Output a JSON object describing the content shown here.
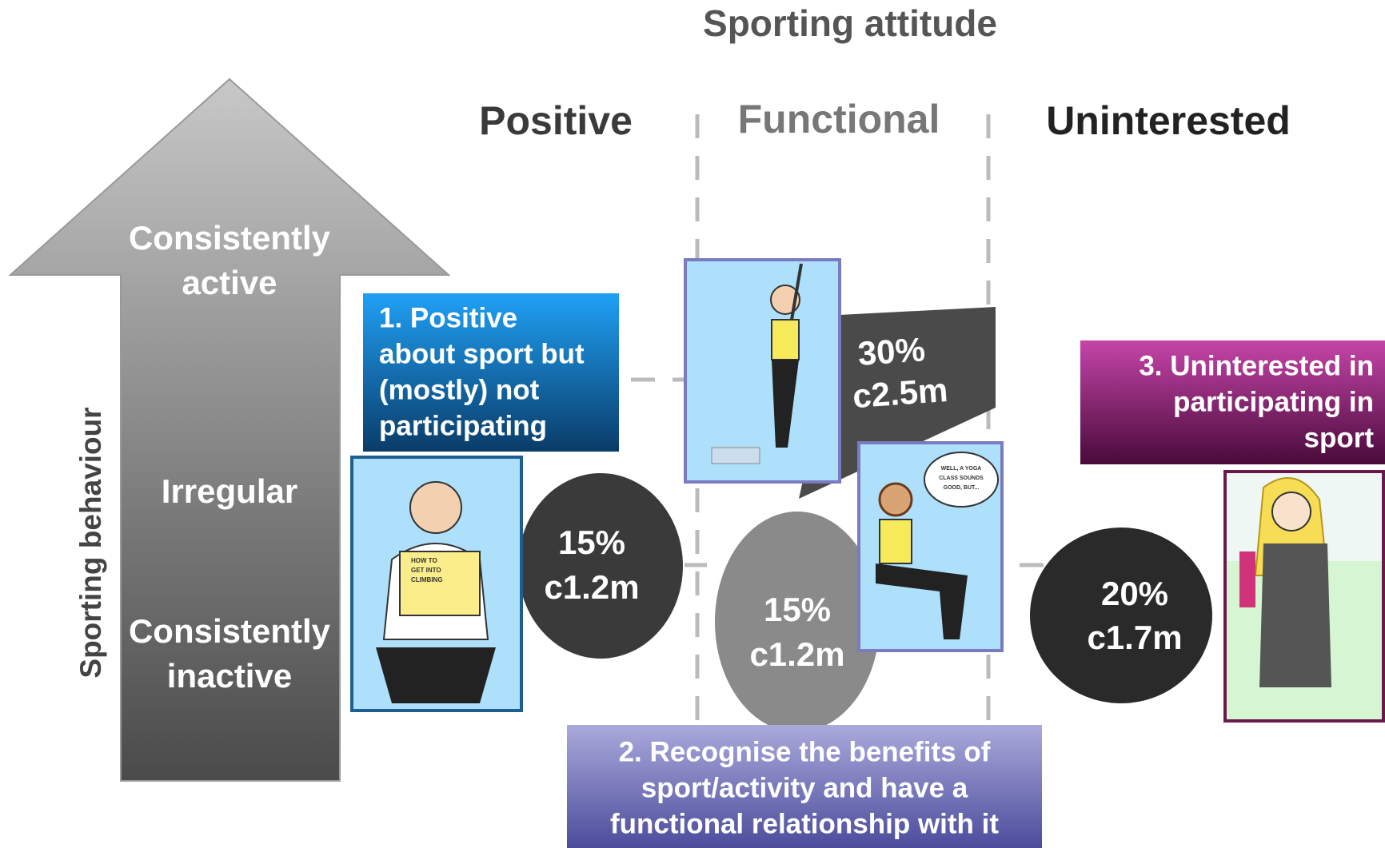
{
  "title": "Sporting attitude",
  "columns": [
    "Positive",
    "Functional",
    "Uninterested"
  ],
  "axis": {
    "label": "Sporting behaviour",
    "levels": [
      [
        "Consistently",
        "active"
      ],
      [
        "Irregular"
      ],
      [
        "Consistently",
        "inactive"
      ]
    ]
  },
  "segments": [
    {
      "label": [
        "1. Positive",
        "about sport but",
        "(mostly) not",
        "participating"
      ],
      "percent": "15%",
      "count": "c1.2m",
      "illustration_text": [
        "HOW TO",
        "GET INTO",
        "CLIMBING"
      ]
    },
    {
      "label": [
        "2. Recognise the benefits of",
        "sport/activity and have a",
        "functional relationship with it"
      ],
      "percent": "15%",
      "count": "c1.2m",
      "illustration_text": [
        "WELL, A YOGA",
        "CLASS SOUNDS",
        "GOOD, BUT..."
      ]
    },
    {
      "label": [
        "3. Uninterested in",
        "participating in",
        "sport"
      ],
      "percent": "20%",
      "count": "c1.7m"
    }
  ],
  "callout": {
    "percent": "30%",
    "count": "c2.5m"
  }
}
